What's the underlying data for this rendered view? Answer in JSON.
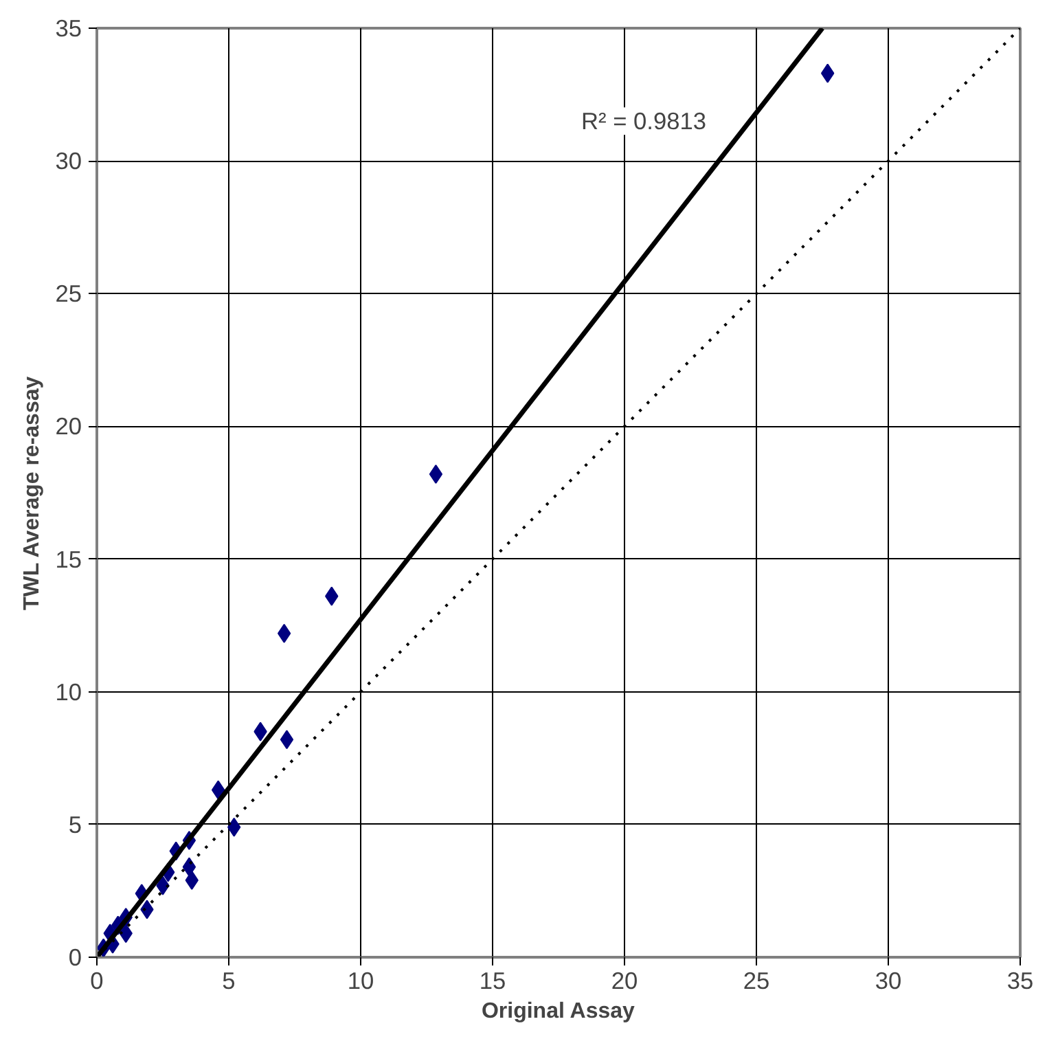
{
  "chart_data": {
    "type": "scatter",
    "xlabel": "Original Assay",
    "ylabel": "TWL Average re-assay",
    "xlim": [
      0,
      35
    ],
    "ylim": [
      0,
      35
    ],
    "xticks": [
      0,
      5,
      10,
      15,
      20,
      25,
      30,
      35
    ],
    "yticks": [
      0,
      5,
      10,
      15,
      20,
      25,
      30,
      35
    ],
    "grid": true,
    "annotations": [
      "R² = 0.9813"
    ],
    "series": [
      {
        "marker": "diamond",
        "color": "#000080",
        "x": [
          27.7,
          12.85,
          8.9,
          7.1,
          6.2,
          7.2,
          4.6,
          5.2,
          3.5,
          3.0,
          3.5,
          3.6,
          2.7,
          2.5,
          1.7,
          1.9,
          1.1,
          0.8,
          1.1,
          0.5,
          0.6,
          0.25
        ],
        "values": [
          33.3,
          18.2,
          13.6,
          12.2,
          8.5,
          8.2,
          6.3,
          4.9,
          4.4,
          4.0,
          3.4,
          2.9,
          3.2,
          2.7,
          2.4,
          1.8,
          1.5,
          1.2,
          0.9,
          0.9,
          0.5,
          0.35
        ]
      },
      {
        "type": "line",
        "marker": "none",
        "line_style": "solid",
        "color": "#000000",
        "x": [
          0,
          27.5
        ],
        "values": [
          0,
          35
        ]
      },
      {
        "type": "line",
        "marker": "none",
        "line_style": "dotted",
        "color": "#000000",
        "x": [
          0,
          35
        ],
        "values": [
          0,
          35
        ]
      }
    ]
  }
}
